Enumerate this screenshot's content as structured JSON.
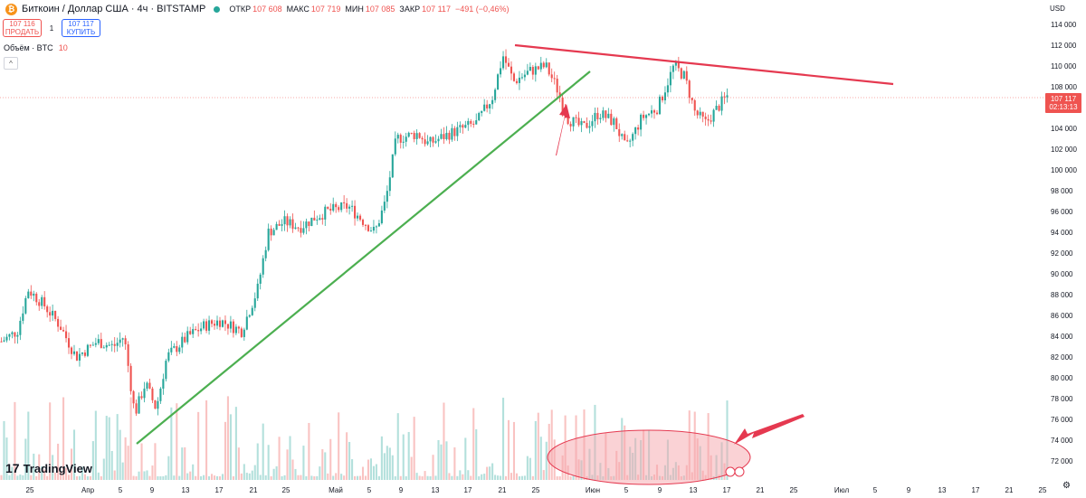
{
  "header": {
    "coin_icon": "₿",
    "symbol_title": "Биткоин / Доллар США · 4ч · BITSTAMP",
    "ohlc": [
      {
        "label": "ОТКР",
        "value": "107 608"
      },
      {
        "label": "МАКС",
        "value": "107 719"
      },
      {
        "label": "МИН",
        "value": "107 085"
      },
      {
        "label": "ЗАКР",
        "value": "107 117"
      },
      {
        "label": "",
        "value": "−491 (−0,46%)"
      }
    ]
  },
  "trade": {
    "sell_price": "107 116",
    "sell_label": "ПРОДАТЬ",
    "spread": "1",
    "buy_price": "107 117",
    "buy_label": "КУПИТЬ"
  },
  "volume_indicator": {
    "label": "Объём · BTC",
    "value": "10"
  },
  "collapse_icon": "collapse-arrow-icon",
  "branding": {
    "logo_text": "TradingView",
    "mark": "17"
  },
  "axis": {
    "currency": "USD"
  },
  "settings_icon": "gear-icon",
  "price_tag": {
    "price": "107 117",
    "countdown": "02:13:13"
  },
  "colors": {
    "up": "#26a69a",
    "down": "#ef5350",
    "support": "#4caf50",
    "resistance": "#e53950",
    "arrow": "#e53950",
    "highlight": "#f9c6c9"
  },
  "chart_data": {
    "type": "candlestick",
    "series_name": "Биткоин / Доллар США · 4ч · BITSTAMP",
    "ylim": [
      71000,
      115000
    ],
    "y_ticks": [
      72000,
      74000,
      76000,
      78000,
      80000,
      82000,
      84000,
      86000,
      88000,
      90000,
      92000,
      94000,
      96000,
      98000,
      100000,
      102000,
      104000,
      106000,
      108000,
      110000,
      112000,
      114000
    ],
    "y_tick_labels": [
      "72 000",
      "74 000",
      "76 000",
      "78 000",
      "80 000",
      "82 000",
      "84 000",
      "86 000",
      "88 000",
      "90 000",
      "92 000",
      "94 000",
      "96 000",
      "98 000",
      "100 000",
      "102 000",
      "104 000",
      "106 000",
      "108 000",
      "110 000",
      "112 000",
      "114 000"
    ],
    "x_tick_labels": [
      "25",
      "Апр",
      "5",
      "9",
      "13",
      "17",
      "21",
      "25",
      "Май",
      "5",
      "9",
      "13",
      "17",
      "21",
      "25",
      "Июн",
      "5",
      "9",
      "13",
      "17",
      "21",
      "25",
      "Июл",
      "5",
      "9",
      "13",
      "17",
      "21",
      "25"
    ],
    "close_path": [
      [
        0,
        83500
      ],
      [
        0.015,
        84500
      ],
      [
        0.025,
        88500
      ],
      [
        0.04,
        87000
      ],
      [
        0.055,
        85000
      ],
      [
        0.07,
        82000
      ],
      [
        0.09,
        83500
      ],
      [
        0.105,
        83000
      ],
      [
        0.115,
        84000
      ],
      [
        0.125,
        76500
      ],
      [
        0.135,
        79500
      ],
      [
        0.145,
        77000
      ],
      [
        0.155,
        82000
      ],
      [
        0.175,
        84000
      ],
      [
        0.19,
        85000
      ],
      [
        0.205,
        85500
      ],
      [
        0.225,
        84500
      ],
      [
        0.24,
        88500
      ],
      [
        0.25,
        94000
      ],
      [
        0.265,
        95000
      ],
      [
        0.28,
        94500
      ],
      [
        0.295,
        95500
      ],
      [
        0.305,
        96000
      ],
      [
        0.325,
        96500
      ],
      [
        0.34,
        95000
      ],
      [
        0.35,
        94000
      ],
      [
        0.36,
        97000
      ],
      [
        0.37,
        103000
      ],
      [
        0.39,
        103500
      ],
      [
        0.4,
        102500
      ],
      [
        0.42,
        103500
      ],
      [
        0.445,
        104500
      ],
      [
        0.46,
        107000
      ],
      [
        0.47,
        111000
      ],
      [
        0.48,
        108500
      ],
      [
        0.495,
        109500
      ],
      [
        0.51,
        110000
      ],
      [
        0.52,
        108000
      ],
      [
        0.53,
        105000
      ],
      [
        0.545,
        104000
      ],
      [
        0.56,
        105500
      ],
      [
        0.575,
        104500
      ],
      [
        0.585,
        102000
      ],
      [
        0.6,
        105000
      ],
      [
        0.615,
        106000
      ],
      [
        0.63,
        110000
      ],
      [
        0.64,
        109000
      ],
      [
        0.65,
        105500
      ],
      [
        0.66,
        104500
      ],
      [
        0.675,
        106500
      ],
      [
        0.68,
        107117
      ]
    ],
    "volume_max_btc": 100,
    "annotations": [
      {
        "type": "trendline",
        "name": "support",
        "from": [
          "Апр 7",
          74200
        ],
        "to": [
          "Июн 1",
          110000
        ]
      },
      {
        "type": "trendline",
        "name": "resistance",
        "from": [
          "Май 22",
          112200
        ],
        "to": [
          "Июл 2",
          108500
        ]
      },
      {
        "type": "arrow",
        "pointing_to": [
          "Июн 1",
          106600
        ]
      },
      {
        "type": "arrow",
        "pointing_to": "volume highlight"
      },
      {
        "type": "ellipse",
        "name": "volume highlight",
        "span": [
          "Май 30",
          "Июн 20"
        ]
      }
    ]
  }
}
